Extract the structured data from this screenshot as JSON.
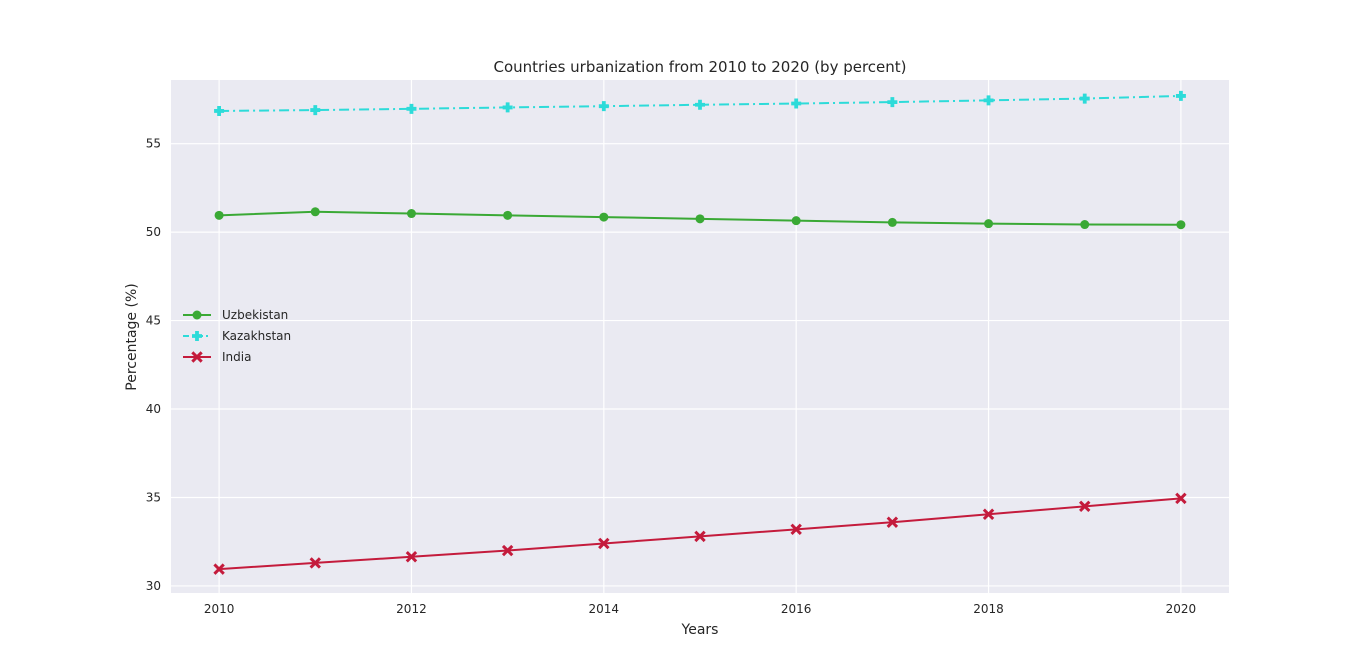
{
  "chart_data": {
    "type": "line",
    "title": "Countries urbanization from 2010 to 2020 (by percent)",
    "xlabel": "Years",
    "ylabel": "Percentage (%)",
    "xlim": [
      2009.5,
      2020.5
    ],
    "ylim": [
      29.6,
      58.6
    ],
    "xticks": [
      2010,
      2012,
      2014,
      2016,
      2018,
      2020
    ],
    "yticks": [
      30,
      35,
      40,
      45,
      50,
      55
    ],
    "grid": true,
    "legend_position": "center-left",
    "x": [
      2010,
      2011,
      2012,
      2013,
      2014,
      2015,
      2016,
      2017,
      2018,
      2019,
      2020
    ],
    "series": [
      {
        "name": "Uzbekistan",
        "color": "#3aa935",
        "line_style": "solid",
        "marker": "circle",
        "values": [
          50.95,
          51.15,
          51.05,
          50.95,
          50.85,
          50.75,
          50.65,
          50.55,
          50.48,
          50.43,
          50.42
        ]
      },
      {
        "name": "Kazakhstan",
        "color": "#2ddbd9",
        "line_style": "dashdot",
        "marker": "plus",
        "values": [
          56.85,
          56.9,
          56.97,
          57.05,
          57.12,
          57.2,
          57.27,
          57.35,
          57.45,
          57.55,
          57.7
        ]
      },
      {
        "name": "India",
        "color": "#c41b3c",
        "line_style": "solid",
        "marker": "x",
        "values": [
          30.95,
          31.3,
          31.65,
          32.0,
          32.4,
          32.8,
          33.2,
          33.6,
          34.05,
          34.5,
          34.95
        ]
      }
    ]
  }
}
